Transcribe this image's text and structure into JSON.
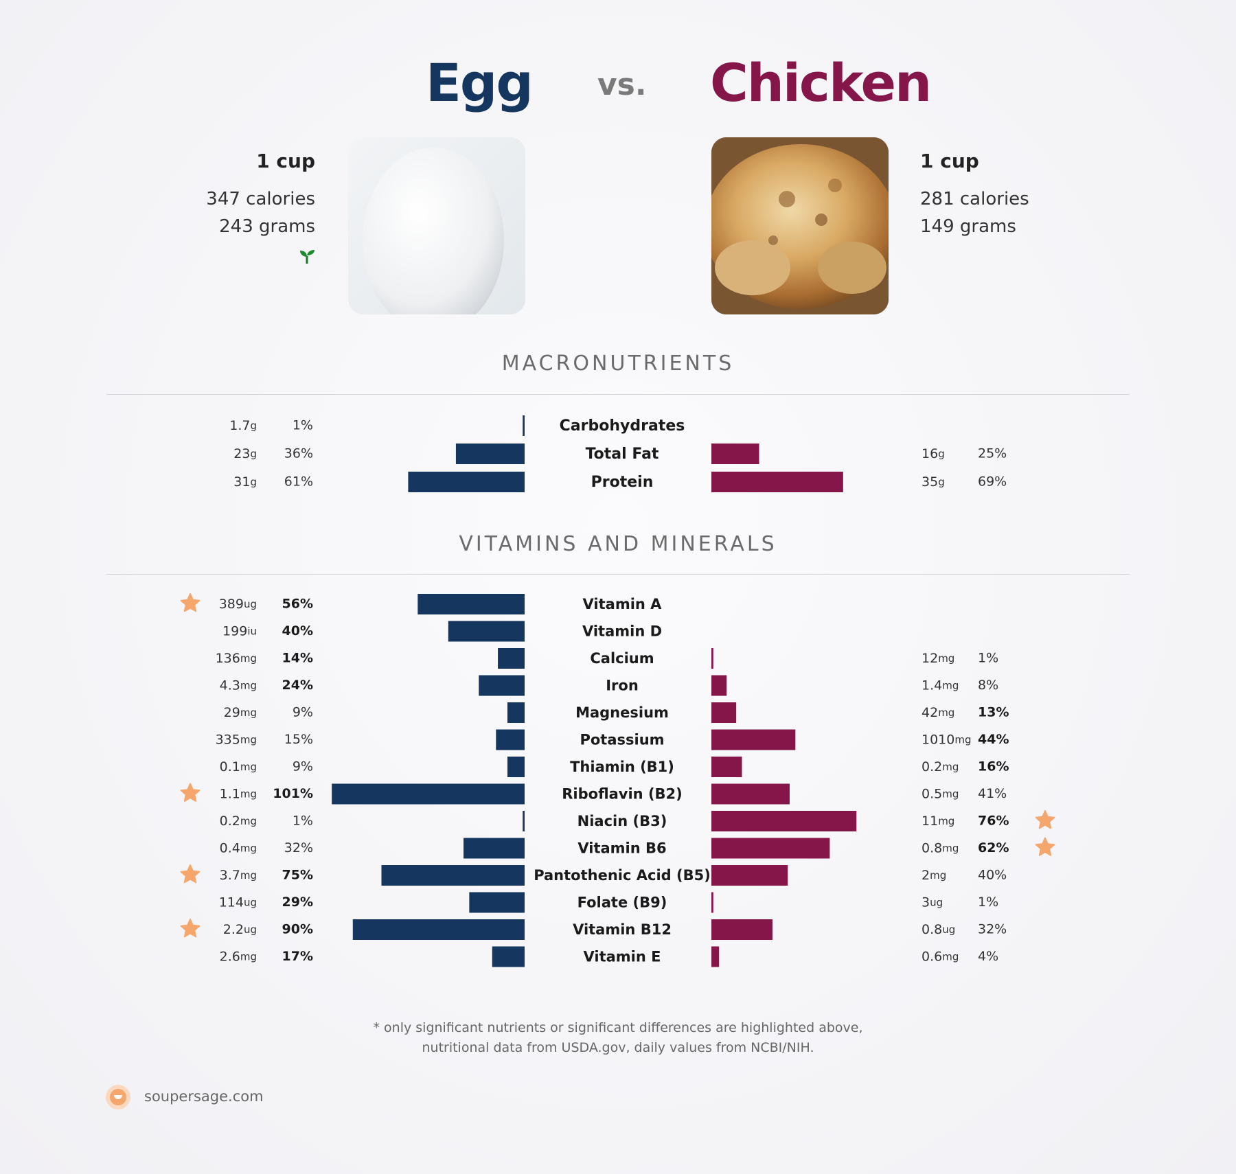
{
  "header": {
    "left_title": "Egg",
    "vs": "vs.",
    "right_title": "Chicken",
    "left_color": "#15365e",
    "right_color": "#84164a"
  },
  "left_food": {
    "serving": "1 cup",
    "calories": "347 calories",
    "grams": "243 grams",
    "image_icon": "egg-photo",
    "badge_icon": "sprout-icon"
  },
  "right_food": {
    "serving": "1 cup",
    "calories": "281 calories",
    "grams": "149 grams",
    "image_icon": "roast-chicken-photo"
  },
  "sections": {
    "macro_title": "MACRONUTRIENTS",
    "vitamins_title": "VITAMINS AND MINERALS"
  },
  "chart_data": [
    {
      "type": "bar",
      "title": "MACRONUTRIENTS",
      "orientation": "diverging-horizontal",
      "series": [
        {
          "name": "Egg",
          "color": "#15365e"
        },
        {
          "name": "Chicken",
          "color": "#84164a"
        }
      ],
      "rows": [
        {
          "label": "Carbohydrates",
          "left": {
            "amount": "1.7",
            "unit": "g",
            "pct": "1%",
            "value": 1,
            "bold": false
          },
          "right": null
        },
        {
          "label": "Total Fat",
          "left": {
            "amount": "23",
            "unit": "g",
            "pct": "36%",
            "value": 36,
            "bold": false
          },
          "right": {
            "amount": "16",
            "unit": "g",
            "pct": "25%",
            "value": 25,
            "bold": false
          }
        },
        {
          "label": "Protein",
          "left": {
            "amount": "31",
            "unit": "g",
            "pct": "61%",
            "value": 61,
            "bold": false
          },
          "right": {
            "amount": "35",
            "unit": "g",
            "pct": "69%",
            "value": 69,
            "bold": false
          }
        }
      ]
    },
    {
      "type": "bar",
      "title": "VITAMINS AND MINERALS",
      "orientation": "diverging-horizontal",
      "series": [
        {
          "name": "Egg",
          "color": "#15365e"
        },
        {
          "name": "Chicken",
          "color": "#84164a"
        }
      ],
      "rows": [
        {
          "label": "Vitamin A",
          "left": {
            "amount": "389",
            "unit": "ug",
            "pct": "56%",
            "value": 56,
            "bold": true,
            "star": true
          },
          "right": null
        },
        {
          "label": "Vitamin D",
          "left": {
            "amount": "199",
            "unit": "iu",
            "pct": "40%",
            "value": 40,
            "bold": true
          },
          "right": null
        },
        {
          "label": "Calcium",
          "left": {
            "amount": "136",
            "unit": "mg",
            "pct": "14%",
            "value": 14,
            "bold": true
          },
          "right": {
            "amount": "12",
            "unit": "mg",
            "pct": "1%",
            "value": 1,
            "bold": false
          }
        },
        {
          "label": "Iron",
          "left": {
            "amount": "4.3",
            "unit": "mg",
            "pct": "24%",
            "value": 24,
            "bold": true
          },
          "right": {
            "amount": "1.4",
            "unit": "mg",
            "pct": "8%",
            "value": 8,
            "bold": false
          }
        },
        {
          "label": "Magnesium",
          "left": {
            "amount": "29",
            "unit": "mg",
            "pct": "9%",
            "value": 9,
            "bold": false
          },
          "right": {
            "amount": "42",
            "unit": "mg",
            "pct": "13%",
            "value": 13,
            "bold": true
          }
        },
        {
          "label": "Potassium",
          "left": {
            "amount": "335",
            "unit": "mg",
            "pct": "15%",
            "value": 15,
            "bold": false
          },
          "right": {
            "amount": "1010",
            "unit": "mg",
            "pct": "44%",
            "value": 44,
            "bold": true
          }
        },
        {
          "label": "Thiamin (B1)",
          "left": {
            "amount": "0.1",
            "unit": "mg",
            "pct": "9%",
            "value": 9,
            "bold": false
          },
          "right": {
            "amount": "0.2",
            "unit": "mg",
            "pct": "16%",
            "value": 16,
            "bold": true
          }
        },
        {
          "label": "Riboflavin (B2)",
          "left": {
            "amount": "1.1",
            "unit": "mg",
            "pct": "101%",
            "value": 101,
            "bold": true,
            "star": true
          },
          "right": {
            "amount": "0.5",
            "unit": "mg",
            "pct": "41%",
            "value": 41,
            "bold": false
          }
        },
        {
          "label": "Niacin (B3)",
          "left": {
            "amount": "0.2",
            "unit": "mg",
            "pct": "1%",
            "value": 1,
            "bold": false
          },
          "right": {
            "amount": "11",
            "unit": "mg",
            "pct": "76%",
            "value": 76,
            "bold": true,
            "star": true
          }
        },
        {
          "label": "Vitamin B6",
          "left": {
            "amount": "0.4",
            "unit": "mg",
            "pct": "32%",
            "value": 32,
            "bold": false
          },
          "right": {
            "amount": "0.8",
            "unit": "mg",
            "pct": "62%",
            "value": 62,
            "bold": true,
            "star": true
          }
        },
        {
          "label": "Pantothenic Acid (B5)",
          "left": {
            "amount": "3.7",
            "unit": "mg",
            "pct": "75%",
            "value": 75,
            "bold": true,
            "star": true
          },
          "right": {
            "amount": "2",
            "unit": "mg",
            "pct": "40%",
            "value": 40,
            "bold": false
          }
        },
        {
          "label": "Folate (B9)",
          "left": {
            "amount": "114",
            "unit": "ug",
            "pct": "29%",
            "value": 29,
            "bold": true
          },
          "right": {
            "amount": "3",
            "unit": "ug",
            "pct": "1%",
            "value": 1,
            "bold": false
          }
        },
        {
          "label": "Vitamin B12",
          "left": {
            "amount": "2.2",
            "unit": "ug",
            "pct": "90%",
            "value": 90,
            "bold": true,
            "star": true
          },
          "right": {
            "amount": "0.8",
            "unit": "ug",
            "pct": "32%",
            "value": 32,
            "bold": false
          }
        },
        {
          "label": "Vitamin E",
          "left": {
            "amount": "2.6",
            "unit": "mg",
            "pct": "17%",
            "value": 17,
            "bold": true
          },
          "right": {
            "amount": "0.6",
            "unit": "mg",
            "pct": "4%",
            "value": 4,
            "bold": false
          }
        }
      ]
    }
  ],
  "footer": {
    "line1": "* only significant nutrients or significant differences are highlighted above,",
    "line2": "nutritional data from USDA.gov, daily values from NCBI/NIH.",
    "brand": "soupersage.com",
    "brand_icon": "soupersage-logo-icon",
    "star_color": "#f5a66c"
  }
}
